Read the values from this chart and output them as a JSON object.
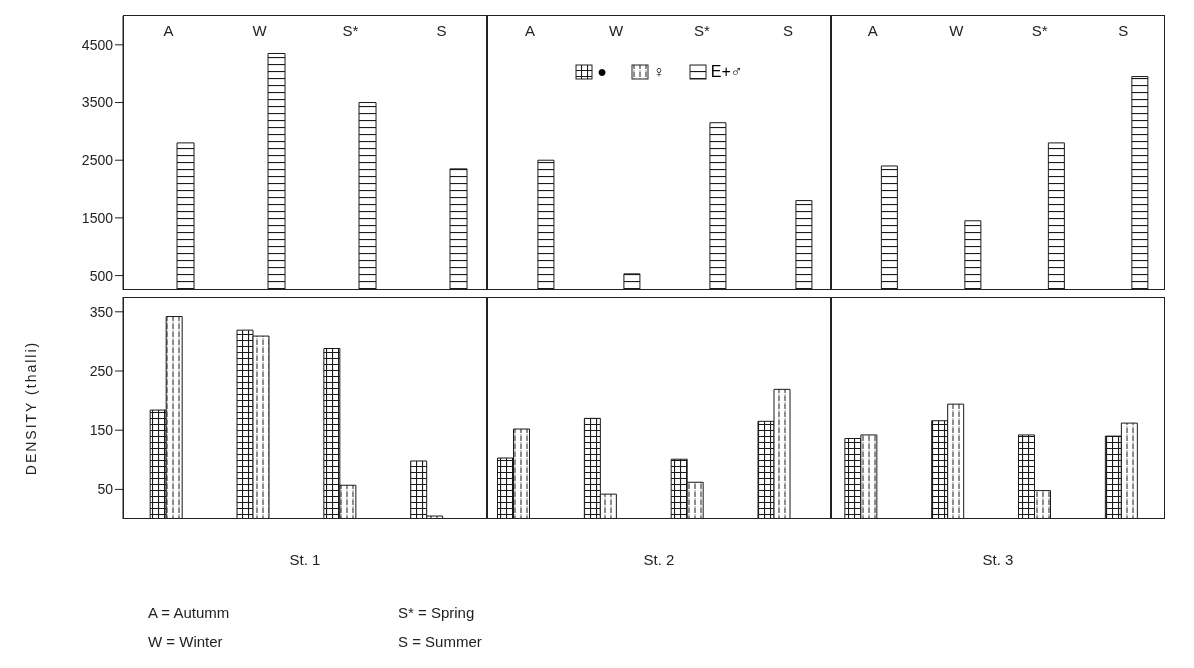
{
  "chart_data": [
    {
      "type": "bar",
      "categories": [
        "A",
        "W",
        "S*",
        "S"
      ],
      "series": [
        {
          "color": "#1a1a1a",
          "values": [
            null,
            null,
            null,
            null
          ]
        },
        {
          "color": "#1a1a1a",
          "values": [
            null,
            null,
            null,
            null
          ]
        },
        {
          "color": "#1a1a1a",
          "values": [
            2800,
            4350,
            3500,
            2350
          ]
        }
      ],
      "ylim": [
        250,
        5000
      ],
      "yticks": [
        500,
        1500,
        2500,
        3500,
        4500
      ],
      "annotations": [
        "A = Autumm",
        "S* = Spring",
        "W = Winter",
        "S = Summer"
      ]
    },
    {
      "type": "bar",
      "categories": [
        "A",
        "W",
        "S*",
        "S"
      ],
      "series": [
        {
          "name": "●",
          "color": "#1a1a1a",
          "values": [
            null,
            null,
            null,
            null
          ]
        },
        {
          "name": "♀",
          "color": "#1a1a1a",
          "values": [
            null,
            null,
            null,
            null
          ]
        },
        {
          "name": "E+♂",
          "color": "#1a1a1a",
          "values": [
            2500,
            530,
            3150,
            1800
          ]
        }
      ],
      "ylim": [
        250,
        5000
      ],
      "tick_labels": "x",
      "legend": "top"
    },
    {
      "type": "bar",
      "categories": [
        "A",
        "W",
        "S*",
        "S"
      ],
      "series": [
        {
          "color": "#1a1a1a",
          "values": [
            null,
            null,
            null,
            null
          ]
        },
        {
          "color": "#1a1a1a",
          "values": [
            null,
            null,
            null,
            null
          ]
        },
        {
          "color": "#1a1a1a",
          "values": [
            2400,
            1450,
            2800,
            3950
          ]
        }
      ],
      "ylim": [
        250,
        5000
      ],
      "tick_labels": "x"
    },
    {
      "type": "bar",
      "ylabel": "DENSITY (thalli)",
      "categories": [
        null,
        null,
        null,
        null,
        null,
        null,
        null,
        null,
        null,
        null,
        null,
        null
      ],
      "series": [
        {
          "color": "#1a1a1a",
          "values": [
            184,
            319,
            288,
            98,
            103,
            170,
            101,
            165,
            136,
            166,
            142,
            140
          ]
        },
        {
          "color": "#1a1a1a",
          "values": [
            342,
            309,
            57,
            5,
            152,
            42,
            62,
            219,
            142,
            194,
            48,
            162
          ]
        }
      ],
      "ylim": [
        0,
        375
      ],
      "yticks": [
        50,
        150,
        250,
        350
      ],
      "tick_labels": "y",
      "annotations": [
        "St. 1",
        "St. 2",
        "St. 3"
      ]
    }
  ]
}
